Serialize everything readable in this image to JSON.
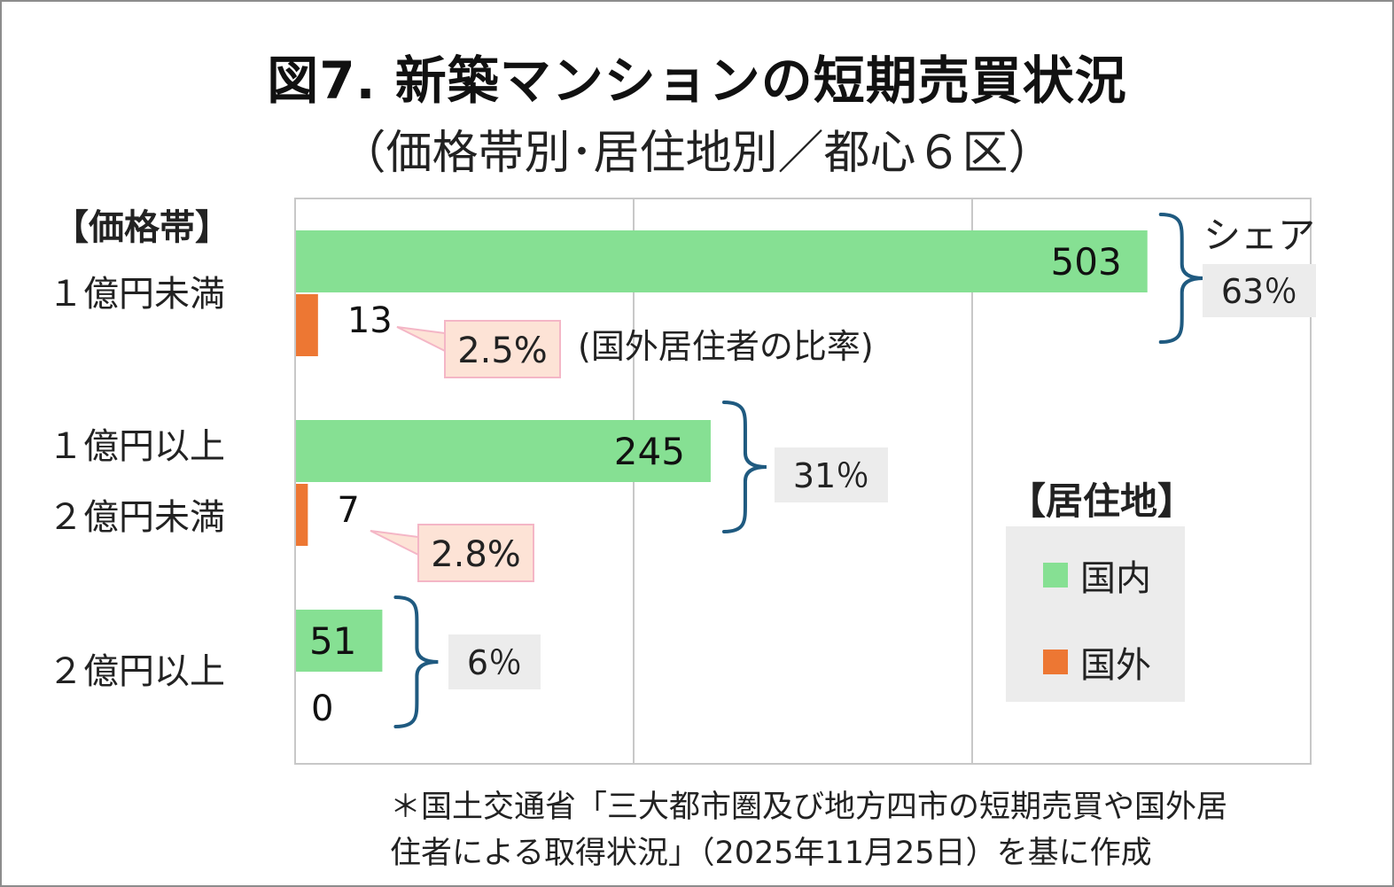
{
  "title": "図7. 新築マンションの短期売買状況",
  "subtitle": "（価格帯別･居住地別／都心６区）",
  "category_axis_title": "【価格帯】",
  "categories": [
    {
      "line1": "１億円未満",
      "line2": ""
    },
    {
      "line1": "１億円以上",
      "line2": "２億円未満"
    },
    {
      "line1": "２億円以上",
      "line2": ""
    }
  ],
  "share_header": "シェア",
  "ratio_note": "(国外居住者の比率)",
  "legend": {
    "title": "【居住地】",
    "items": [
      {
        "label": "国内",
        "color": "#86e093"
      },
      {
        "label": "国外",
        "color": "#ed7733"
      }
    ]
  },
  "footnote": {
    "line1": "＊国土交通省「三大都市圏及び地方四市の短期売買や国外居",
    "line2": "住者による取得状況」（2025年11月25日）を基に作成"
  },
  "colors": {
    "domestic": "#86e093",
    "foreign": "#ed7733",
    "brace": "#1f5a80",
    "grid": "#c8c8c8",
    "share_box": "#ececec",
    "callout_fill": "#fde3d6",
    "callout_border": "#f4b6c6"
  },
  "chart_data": {
    "type": "bar",
    "orientation": "horizontal",
    "categories": [
      "１億円未満",
      "１億円以上２億円未満",
      "２億円以上"
    ],
    "series": [
      {
        "name": "国内",
        "values": [
          503,
          245,
          51
        ],
        "labels": [
          "503",
          "245",
          "51"
        ]
      },
      {
        "name": "国外",
        "values": [
          13,
          7,
          0
        ],
        "labels": [
          "13",
          "7",
          "0"
        ]
      }
    ],
    "shares": [
      "63％",
      "31％",
      "6％"
    ],
    "foreign_ratios": [
      "2.5%",
      "2.8%",
      ""
    ],
    "xlim": [
      0,
      600
    ],
    "grid": true,
    "legend_position": "right"
  }
}
